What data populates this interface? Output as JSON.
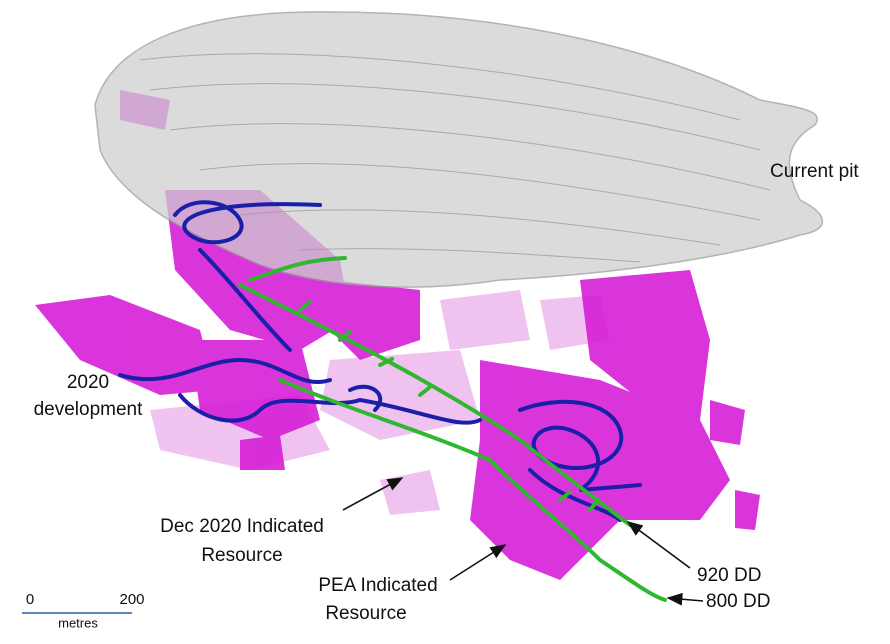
{
  "labels": {
    "current_pit": "Current pit",
    "development": [
      "2020",
      "development"
    ],
    "dec_2020_resource": [
      "Dec 2020 Indicated",
      "Resource"
    ],
    "pea_resource": [
      "PEA Indicated",
      "Resource"
    ],
    "dd_920": "920 DD",
    "dd_800": "800 DD"
  },
  "scale_bar": {
    "start": 0,
    "end": 200,
    "unit": "metres"
  }
}
